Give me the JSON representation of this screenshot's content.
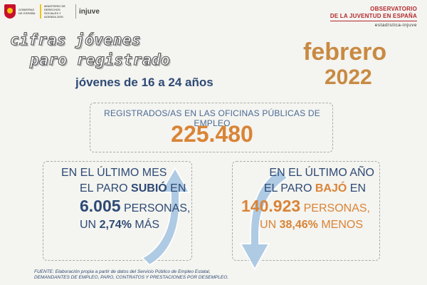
{
  "header": {
    "government": "GOBIERNO DE ESPAÑA",
    "ministry": "MINISTERIO DE DERECHOS SOCIALES Y AGENDA 2030",
    "injuve": "injuve",
    "observatory_line1": "OBSERVATORIO",
    "observatory_line2": "DE LA JUVENTUD EN ESPAÑA",
    "observatory_line3": "estadística-injuve"
  },
  "title": {
    "line1": "cifras jóvenes",
    "line2": "paro registrado",
    "age_range": "jóvenes de 16 a 24 años",
    "month": "febrero",
    "year": "2022"
  },
  "registered": {
    "label": "REGISTRADOS/AS EN LAS OFICINAS PÚBLICAS DE EMPLEO",
    "value": "225.480"
  },
  "last_month": {
    "line1": "EN EL ÚLTIMO MES",
    "line2_pre": "EL PARO ",
    "line2_verb": "SUBIÓ",
    "line2_post": " EN",
    "amount": "6.005",
    "line3_post": " PERSONAS,",
    "line4_pre": "UN ",
    "percent": "2,74%",
    "line4_post": " MÁS"
  },
  "last_year": {
    "line1": "EN EL ÚLTIMO AÑO",
    "line2_pre": "EL PARO ",
    "line2_verb": "BAJÓ",
    "line2_post": " EN",
    "amount": "140.923",
    "line3_post": " PERSONAS,",
    "line4_pre": "UN ",
    "percent": "38,46%",
    "line4_post": " MENOS"
  },
  "footer": {
    "line1": "FUENTE: Elaboración propia a partir de datos del Servicio Público de Empleo Estatal,",
    "line2": "DEMANDANTES DE EMPLEO, PARO, CONTRATOS Y PRESTACIONES POR DESEMPLEO."
  },
  "colors": {
    "navy": "#2e4a75",
    "orange": "#d98436",
    "gold": "#c88a42",
    "arrow": "#a8c6e2",
    "observatory_red": "#b3282d"
  }
}
